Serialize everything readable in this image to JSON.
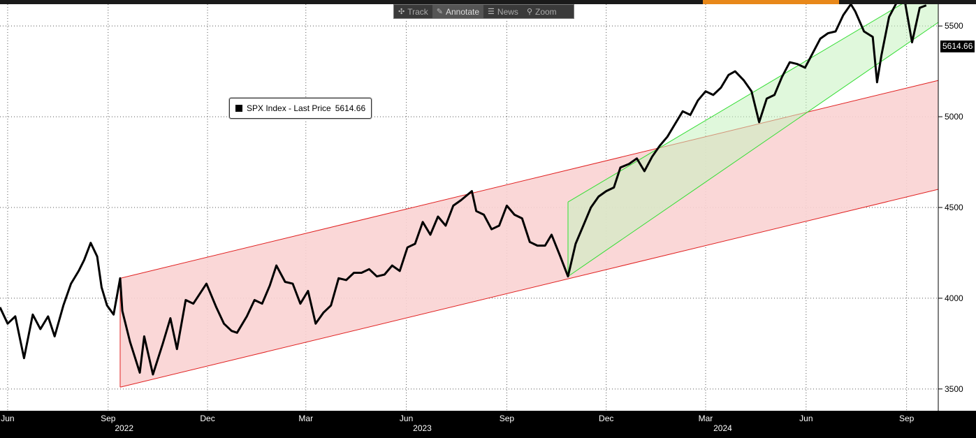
{
  "toolbar": {
    "items": [
      {
        "label": "Track",
        "icon": "crosshair-icon"
      },
      {
        "label": "Annotate",
        "icon": "pencil-icon"
      },
      {
        "label": "News",
        "icon": "news-icon"
      },
      {
        "label": "Zoom",
        "icon": "magnifier-icon"
      }
    ],
    "active": "Annotate"
  },
  "colors": {
    "background": "#ffffff",
    "price_line": "#000000",
    "red_channel_fill": "#f9d3d3",
    "red_channel_line": "#e02020",
    "green_channel_fill": "#c7f2bf",
    "green_channel_line": "#33dd33",
    "toolbar_accent": "#e8881a"
  },
  "chart_data": {
    "type": "line",
    "title": "",
    "legend": {
      "label": "SPX Index - Last Price",
      "value": "5614.66"
    },
    "last_price_label": "5614.66",
    "y_axis": {
      "ticks": [
        3500,
        4000,
        4500,
        5000,
        5500
      ],
      "range": [
        3380,
        5620
      ],
      "position": "right"
    },
    "x_axis": {
      "month_labels": [
        "Jun",
        "Sep",
        "Dec",
        "Mar",
        "Jun",
        "Sep",
        "Dec",
        "Mar",
        "Jun",
        "Sep"
      ],
      "year_labels": [
        "2022",
        "2023",
        "2024"
      ],
      "range": [
        "2022-05-25",
        "2024-09-30"
      ]
    },
    "grid": true,
    "series": [
      {
        "name": "SPX Index - Last Price",
        "x": [
          "2022-05-25",
          "2022-06-01",
          "2022-06-08",
          "2022-06-16",
          "2022-06-24",
          "2022-07-01",
          "2022-07-08",
          "2022-07-14",
          "2022-07-22",
          "2022-07-29",
          "2022-08-05",
          "2022-08-10",
          "2022-08-16",
          "2022-08-22",
          "2022-08-26",
          "2022-08-31",
          "2022-09-06",
          "2022-09-12",
          "2022-09-14",
          "2022-09-21",
          "2022-09-30",
          "2022-10-04",
          "2022-10-12",
          "2022-10-21",
          "2022-10-28",
          "2022-11-03",
          "2022-11-11",
          "2022-11-18",
          "2022-11-30",
          "2022-12-09",
          "2022-12-16",
          "2022-12-23",
          "2022-12-28",
          "2023-01-06",
          "2023-01-13",
          "2023-01-20",
          "2023-01-27",
          "2023-02-02",
          "2023-02-10",
          "2023-02-17",
          "2023-02-24",
          "2023-03-03",
          "2023-03-10",
          "2023-03-17",
          "2023-03-24",
          "2023-03-31",
          "2023-04-07",
          "2023-04-14",
          "2023-04-21",
          "2023-04-28",
          "2023-05-05",
          "2023-05-12",
          "2023-05-19",
          "2023-05-26",
          "2023-06-02",
          "2023-06-09",
          "2023-06-16",
          "2023-06-23",
          "2023-06-30",
          "2023-07-07",
          "2023-07-14",
          "2023-07-21",
          "2023-07-31",
          "2023-08-04",
          "2023-08-11",
          "2023-08-18",
          "2023-08-25",
          "2023-09-01",
          "2023-09-08",
          "2023-09-15",
          "2023-09-22",
          "2023-09-29",
          "2023-10-06",
          "2023-10-12",
          "2023-10-20",
          "2023-10-27",
          "2023-11-03",
          "2023-11-10",
          "2023-11-17",
          "2023-11-24",
          "2023-12-01",
          "2023-12-08",
          "2023-12-14",
          "2023-12-22",
          "2023-12-29",
          "2024-01-05",
          "2024-01-12",
          "2024-01-19",
          "2024-01-26",
          "2024-02-02",
          "2024-02-09",
          "2024-02-16",
          "2024-02-23",
          "2024-03-01",
          "2024-03-08",
          "2024-03-15",
          "2024-03-22",
          "2024-03-28",
          "2024-04-05",
          "2024-04-12",
          "2024-04-19",
          "2024-04-26",
          "2024-05-03",
          "2024-05-10",
          "2024-05-17",
          "2024-05-24",
          "2024-05-31",
          "2024-06-07",
          "2024-06-14",
          "2024-06-21",
          "2024-06-28",
          "2024-07-05",
          "2024-07-12",
          "2024-07-16",
          "2024-07-24",
          "2024-08-01",
          "2024-08-05",
          "2024-08-09",
          "2024-08-16",
          "2024-08-23",
          "2024-08-30",
          "2024-09-06",
          "2024-09-13",
          "2024-09-19"
        ],
        "values": [
          3950,
          3860,
          3900,
          3670,
          3910,
          3830,
          3900,
          3790,
          3960,
          4080,
          4150,
          4210,
          4305,
          4230,
          4060,
          3960,
          3910,
          4110,
          3930,
          3760,
          3590,
          3790,
          3580,
          3750,
          3890,
          3720,
          3990,
          3970,
          4080,
          3950,
          3860,
          3820,
          3810,
          3900,
          3990,
          3970,
          4070,
          4180,
          4090,
          4080,
          3970,
          4040,
          3860,
          3920,
          3960,
          4110,
          4100,
          4140,
          4140,
          4160,
          4120,
          4130,
          4180,
          4150,
          4280,
          4300,
          4420,
          4350,
          4450,
          4400,
          4510,
          4540,
          4590,
          4480,
          4460,
          4380,
          4400,
          4510,
          4460,
          4440,
          4310,
          4290,
          4290,
          4350,
          4230,
          4120,
          4300,
          4400,
          4500,
          4560,
          4590,
          4610,
          4720,
          4740,
          4770,
          4700,
          4780,
          4840,
          4890,
          4960,
          5030,
          5010,
          5090,
          5140,
          5120,
          5160,
          5230,
          5250,
          5200,
          5140,
          4970,
          5100,
          5120,
          5220,
          5300,
          5290,
          5270,
          5350,
          5430,
          5460,
          5470,
          5560,
          5620,
          5580,
          5470,
          5440,
          5190,
          5340,
          5550,
          5630,
          5650,
          5410,
          5600,
          5614
        ]
      }
    ],
    "channels": [
      {
        "name": "red",
        "start": "2022-09-12",
        "end": "2024-09-30",
        "upper": [
          4110,
          5200
        ],
        "lower": [
          3510,
          4600
        ]
      },
      {
        "name": "green",
        "start": "2023-10-27",
        "end": "2024-09-30",
        "upper": [
          4530,
          5740
        ],
        "lower": [
          4120,
          5520
        ]
      }
    ]
  }
}
